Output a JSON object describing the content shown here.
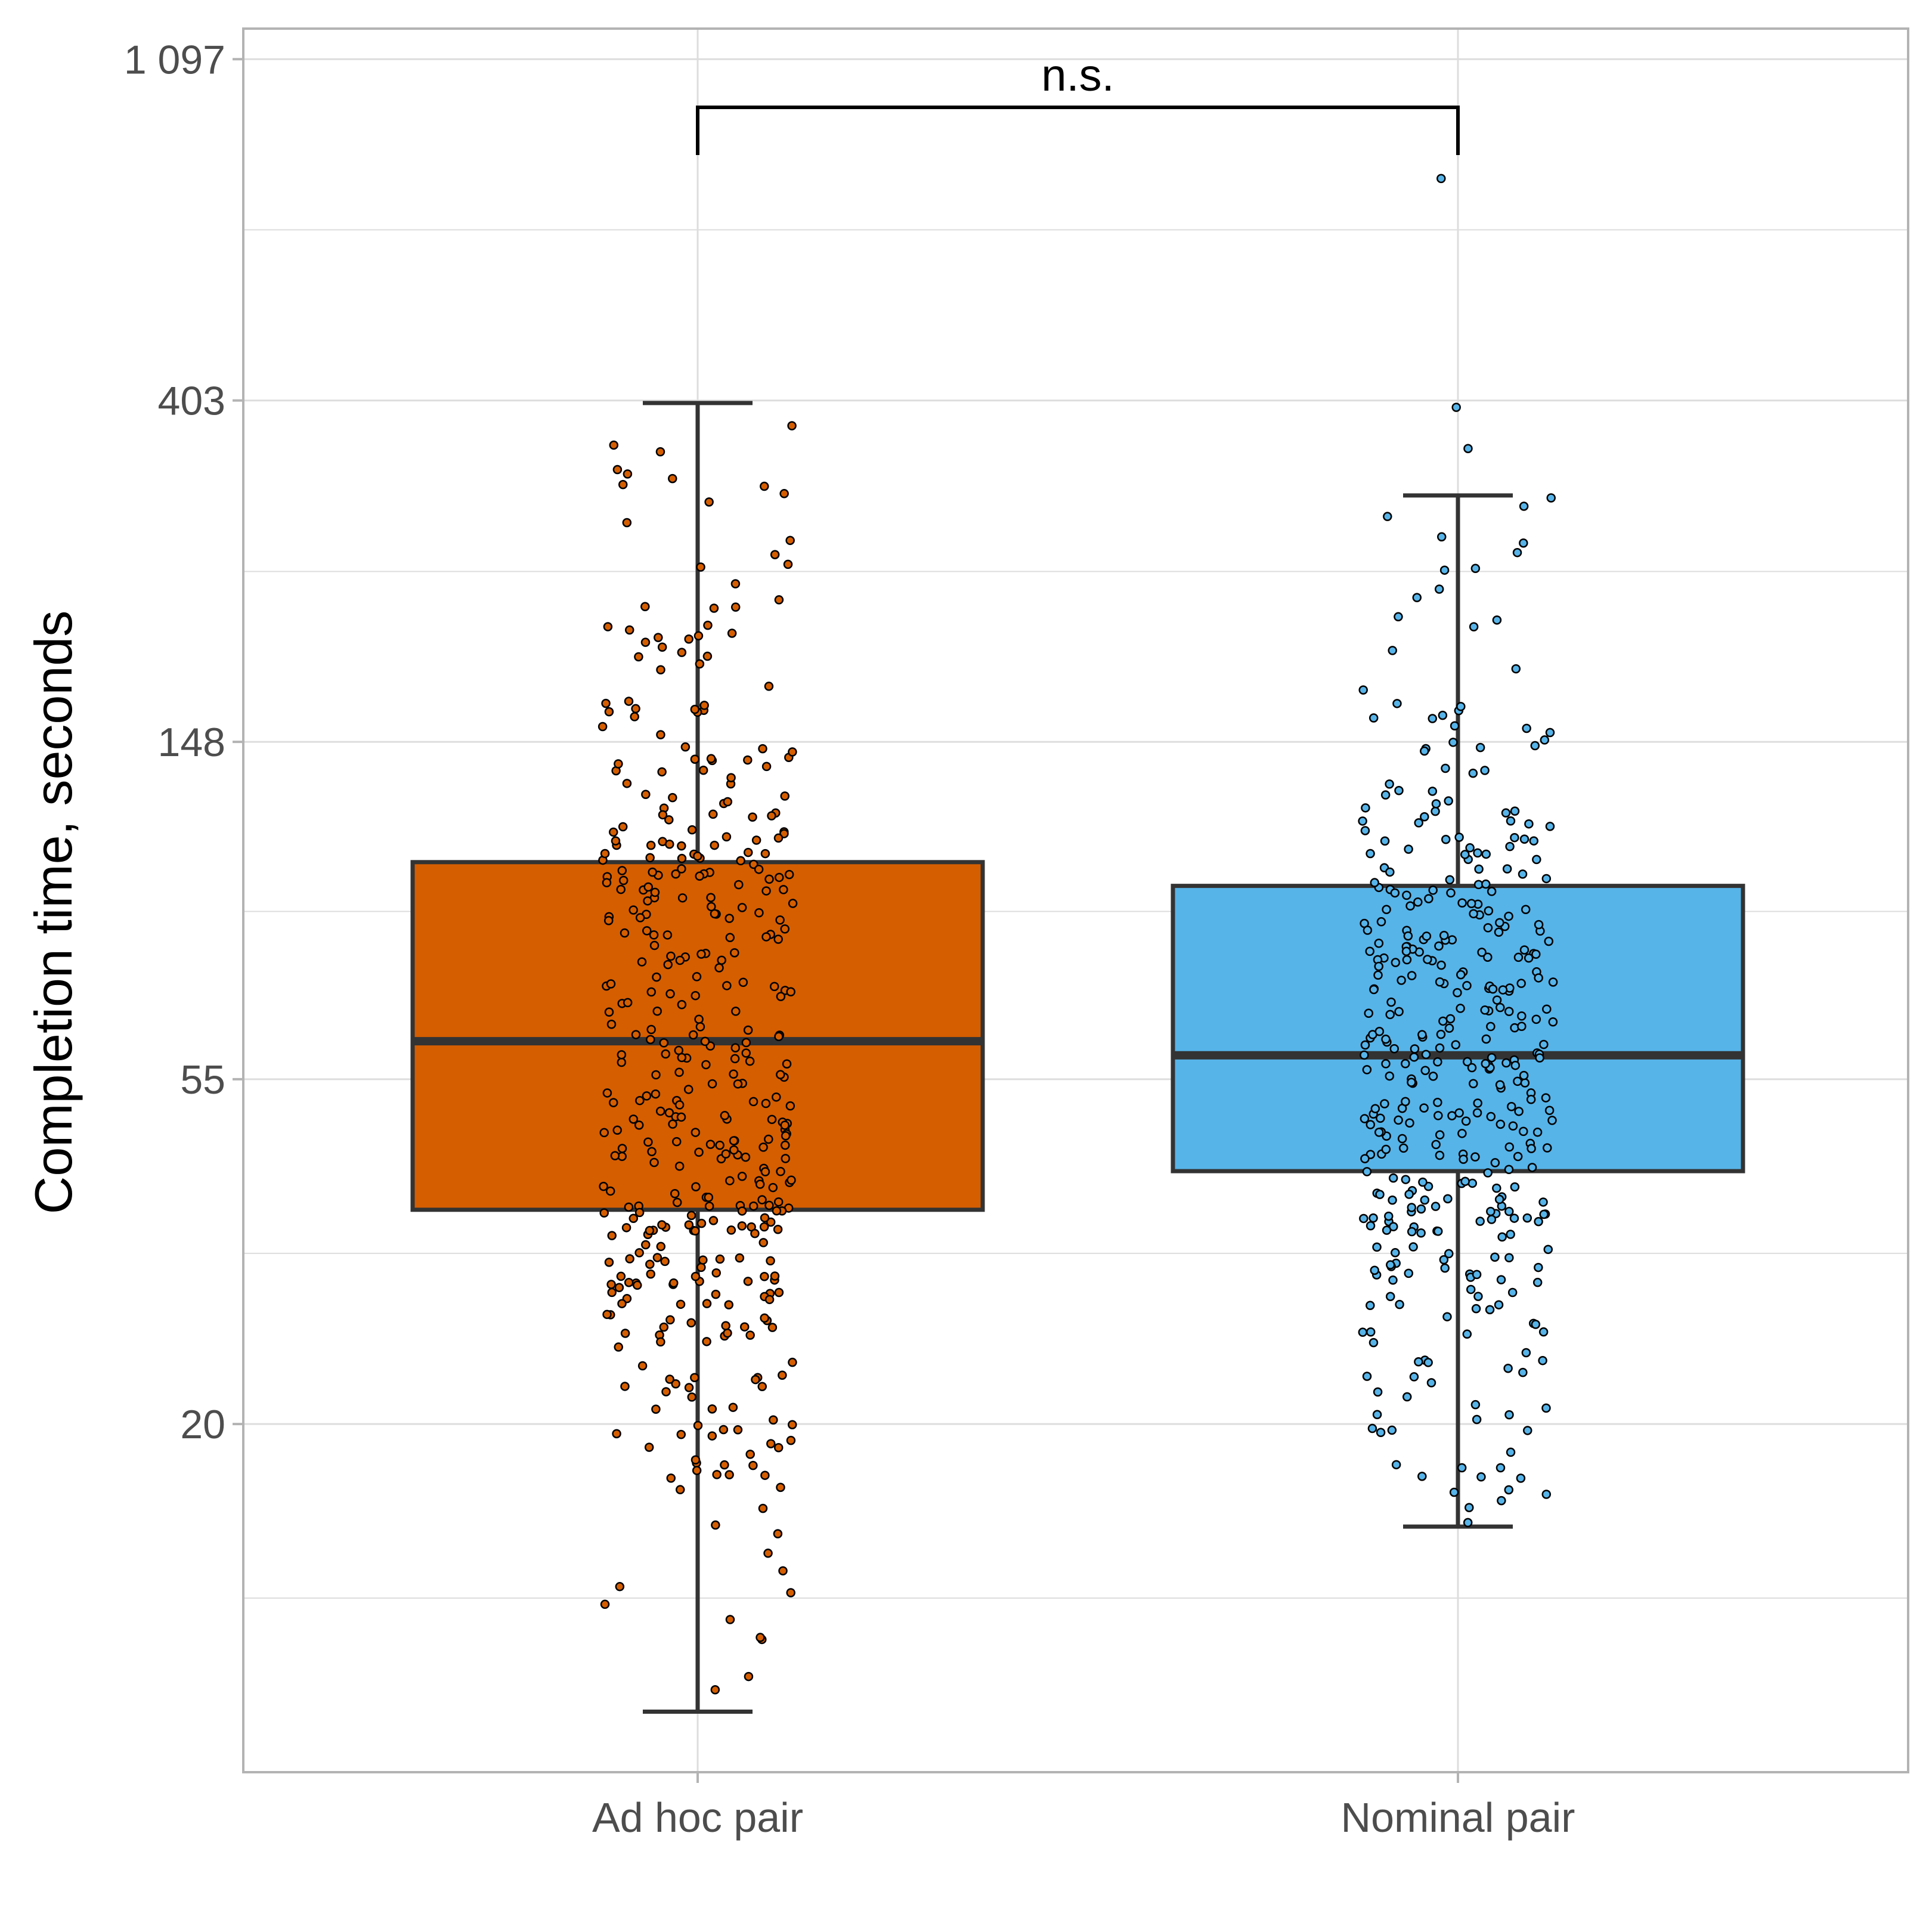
{
  "chart_data": {
    "type": "boxplot",
    "ylabel": "Completion time, seconds",
    "xlabel": "",
    "yscale": "log",
    "ylim": [
      7.2,
      1200
    ],
    "y_ticks": [
      {
        "value": 1097,
        "label": "1 097"
      },
      {
        "value": 403,
        "label": "403"
      },
      {
        "value": 148,
        "label": "148"
      },
      {
        "value": 55,
        "label": "55"
      },
      {
        "value": 20,
        "label": "20"
      }
    ],
    "y_minor_gridlines": [
      665,
      244,
      90,
      33,
      12
    ],
    "grid": true,
    "categories": [
      "Ad hoc pair",
      "Nominal pair"
    ],
    "boxes": [
      {
        "category": "Ad hoc pair",
        "fill": "#D55E00",
        "whisker_low": 8.6,
        "q1": 37.5,
        "median": 61.5,
        "q3": 104,
        "whisker_high": 400,
        "jitter_seed": 11,
        "n_points": 430
      },
      {
        "category": "Nominal pair",
        "fill": "#56B4E9",
        "whisker_low": 14.8,
        "q1": 42,
        "median": 59,
        "q3": 97,
        "whisker_high": 305,
        "outliers": [
          773,
          395,
          350
        ],
        "jitter_seed": 23,
        "n_points": 400
      }
    ],
    "significance": {
      "label": "n.s.",
      "between": [
        "Ad hoc pair",
        "Nominal pair"
      ]
    },
    "colors": {
      "box_stroke": "#333333",
      "grid": "#dddddd",
      "axis_text": "#4d4d4d",
      "panel_border": "#b3b3b3"
    }
  }
}
